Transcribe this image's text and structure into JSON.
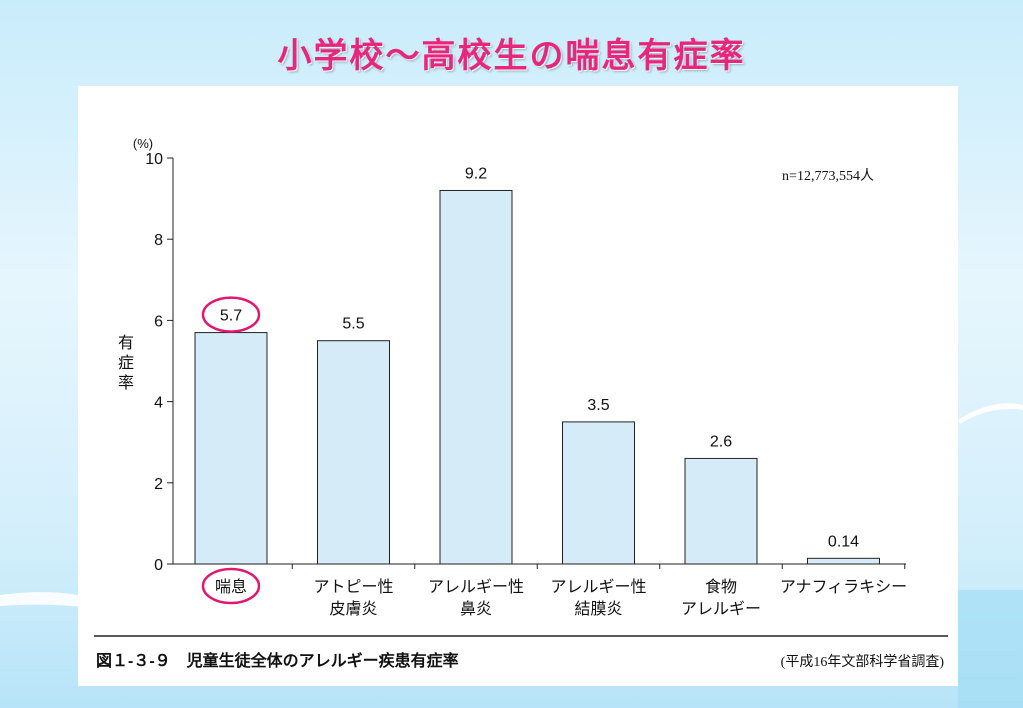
{
  "slide_title": "小学校～高校生の喘息有症率",
  "colors": {
    "title": "#e7267d",
    "bar_fill": "#d6ebf8",
    "bar_stroke": "#222222",
    "highlight": "#e0186f"
  },
  "chart_data": {
    "type": "bar",
    "title": "",
    "ylabel": "有症率",
    "yunit": "(%)",
    "ylim": [
      0,
      10
    ],
    "yticks": [
      0,
      2,
      4,
      6,
      8,
      10
    ],
    "categories": [
      [
        "喘息"
      ],
      [
        "アトピー性",
        "皮膚炎"
      ],
      [
        "アレルギー性",
        "鼻炎"
      ],
      [
        "アレルギー性",
        "結膜炎"
      ],
      [
        "食物",
        "アレルギー"
      ],
      [
        "アナフィラキシー"
      ]
    ],
    "values": [
      5.7,
      5.5,
      9.2,
      3.5,
      2.6,
      0.14
    ],
    "value_labels": [
      "5.7",
      "5.5",
      "9.2",
      "3.5",
      "2.6",
      "0.14"
    ],
    "highlight_index": 0,
    "annotation": "n=12,773,554人",
    "caption": "図１-３-９　児童生徒全体のアレルギー疾患有症率",
    "source": "(平成16年文部科学省調査)"
  }
}
